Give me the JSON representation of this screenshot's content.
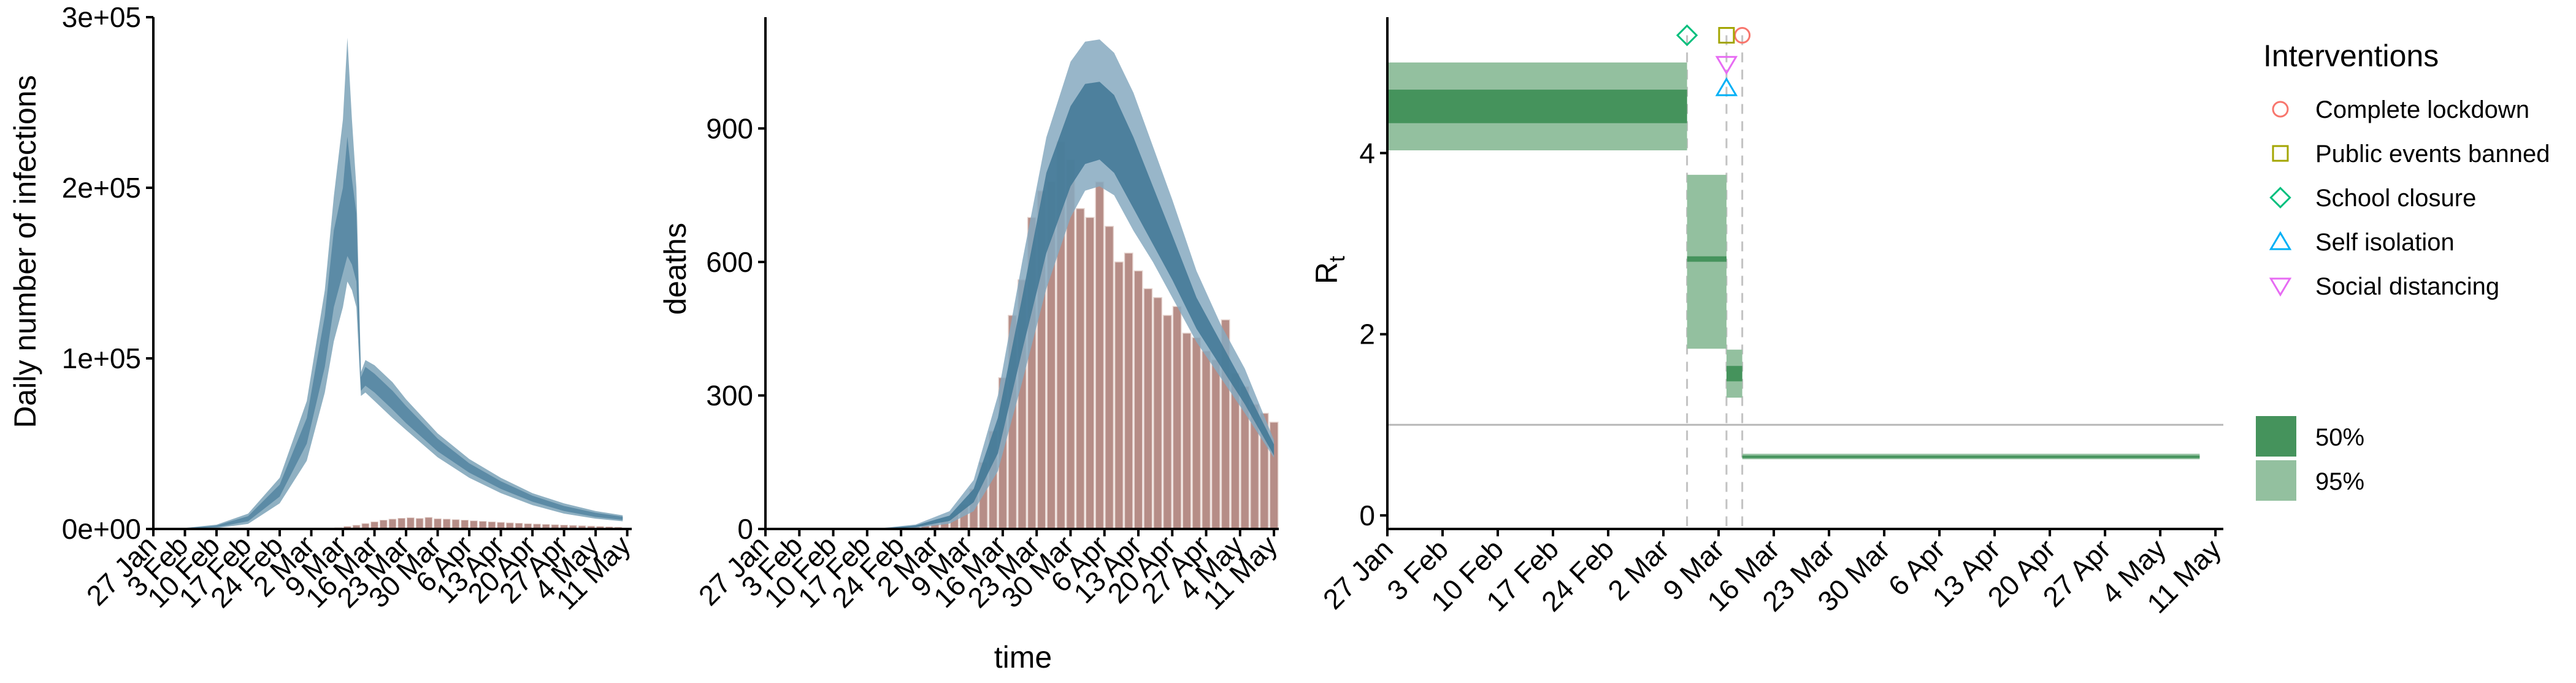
{
  "figure": {
    "colors": {
      "band95": "#8fb0c2",
      "band50": "#5c8ba6",
      "deaths_band95": "#86a9bf",
      "deaths_band50": "#3f7795",
      "bar_fill": "#b68d87",
      "bar_stroke": "#e6d4cf",
      "rt95": "#93c09f",
      "rt50": "#45935c",
      "ref_line": "#b8b8b8",
      "vline": "#c2c2c2",
      "axis": "#000000"
    }
  },
  "chart_data": [
    {
      "type": "area",
      "panel": "infections",
      "title": "",
      "xlabel": "",
      "ylabel": "Daily number of infections",
      "ylim": [
        0,
        300000
      ],
      "yticks": [
        0,
        100000,
        200000,
        300000
      ],
      "ytick_labels": [
        "0e+00",
        "1e+05",
        "2e+05",
        "3e+05"
      ],
      "xticks": [
        "27 Jan",
        "3 Feb",
        "10 Feb",
        "17 Feb",
        "24 Feb",
        "2 Mar",
        "9 Mar",
        "16 Mar",
        "23 Mar",
        "30 Mar",
        "6 Apr",
        "13 Apr",
        "20 Apr",
        "27 Apr",
        "4 May",
        "11 May"
      ],
      "grid": false,
      "series": [
        {
          "kind": "band95",
          "points": [
            [
              "2020-01-27",
              0,
              200
            ],
            [
              "2020-02-03",
              100,
              600
            ],
            [
              "2020-02-10",
              500,
              2500
            ],
            [
              "2020-02-17",
              3000,
              9000
            ],
            [
              "2020-02-24",
              15000,
              30000
            ],
            [
              "2020-03-01",
              40000,
              75000
            ],
            [
              "2020-03-05",
              80000,
              140000
            ],
            [
              "2020-03-07",
              110000,
              195000
            ],
            [
              "2020-03-09",
              130000,
              240000
            ],
            [
              "2020-03-10",
              145000,
              288000
            ],
            [
              "2020-03-11",
              140000,
              240000
            ],
            [
              "2020-03-12",
              130000,
              200000
            ],
            [
              "2020-03-13",
              78000,
              92000
            ],
            [
              "2020-03-14",
              80000,
              99000
            ],
            [
              "2020-03-16",
              75000,
              96000
            ],
            [
              "2020-03-20",
              65000,
              86000
            ],
            [
              "2020-03-23",
              58000,
              76000
            ],
            [
              "2020-03-30",
              42000,
              56000
            ],
            [
              "2020-04-06",
              30000,
              41000
            ],
            [
              "2020-04-13",
              21000,
              30000
            ],
            [
              "2020-04-20",
              14000,
              21000
            ],
            [
              "2020-04-27",
              9000,
              15000
            ],
            [
              "2020-05-04",
              6000,
              10500
            ],
            [
              "2020-05-10",
              4500,
              8000
            ]
          ]
        },
        {
          "kind": "band50",
          "points": [
            [
              "2020-01-27",
              0,
              150
            ],
            [
              "2020-02-03",
              200,
              450
            ],
            [
              "2020-02-10",
              1000,
              2000
            ],
            [
              "2020-02-17",
              4500,
              7500
            ],
            [
              "2020-02-24",
              19000,
              26000
            ],
            [
              "2020-03-01",
              50000,
              65000
            ],
            [
              "2020-03-05",
              95000,
              125000
            ],
            [
              "2020-03-07",
              130000,
              175000
            ],
            [
              "2020-03-09",
              150000,
              200000
            ],
            [
              "2020-03-10",
              160000,
              230000
            ],
            [
              "2020-03-11",
              155000,
              205000
            ],
            [
              "2020-03-12",
              145000,
              185000
            ],
            [
              "2020-03-13",
              81000,
              89000
            ],
            [
              "2020-03-14",
              84000,
              95000
            ],
            [
              "2020-03-16",
              80000,
              91000
            ],
            [
              "2020-03-20",
              70000,
              81000
            ],
            [
              "2020-03-23",
              62000,
              72000
            ],
            [
              "2020-03-30",
              45500,
              53000
            ],
            [
              "2020-04-06",
              33000,
              38500
            ],
            [
              "2020-04-13",
              23500,
              28000
            ],
            [
              "2020-04-20",
              16000,
              19500
            ],
            [
              "2020-04-27",
              10500,
              13500
            ],
            [
              "2020-05-04",
              7000,
              9500
            ],
            [
              "2020-05-10",
              5300,
              7200
            ]
          ]
        },
        {
          "kind": "bars",
          "name": "",
          "points": [
            [
              "2020-03-05",
              200
            ],
            [
              "2020-03-08",
              700
            ],
            [
              "2020-03-10",
              1500
            ],
            [
              "2020-03-12",
              2200
            ],
            [
              "2020-03-14",
              3200
            ],
            [
              "2020-03-16",
              4200
            ],
            [
              "2020-03-18",
              5200
            ],
            [
              "2020-03-20",
              5800
            ],
            [
              "2020-03-22",
              6300
            ],
            [
              "2020-03-24",
              6600
            ],
            [
              "2020-03-26",
              6200
            ],
            [
              "2020-03-28",
              6800
            ],
            [
              "2020-03-30",
              6000
            ],
            [
              "2020-04-01",
              5800
            ],
            [
              "2020-04-03",
              5500
            ],
            [
              "2020-04-05",
              5200
            ],
            [
              "2020-04-07",
              4800
            ],
            [
              "2020-04-09",
              4500
            ],
            [
              "2020-04-11",
              4200
            ],
            [
              "2020-04-13",
              3900
            ],
            [
              "2020-04-15",
              3600
            ],
            [
              "2020-04-17",
              3400
            ],
            [
              "2020-04-19",
              3100
            ],
            [
              "2020-04-21",
              2900
            ],
            [
              "2020-04-23",
              2700
            ],
            [
              "2020-04-25",
              2500
            ],
            [
              "2020-04-27",
              2300
            ],
            [
              "2020-04-29",
              2100
            ],
            [
              "2020-05-01",
              1900
            ],
            [
              "2020-05-03",
              1700
            ],
            [
              "2020-05-05",
              1500
            ],
            [
              "2020-05-07",
              1300
            ],
            [
              "2020-05-09",
              1100
            ]
          ]
        }
      ]
    },
    {
      "type": "area",
      "panel": "deaths",
      "title": "",
      "xlabel": "time",
      "ylabel": "deaths",
      "ylim": [
        0,
        1150
      ],
      "yticks": [
        0,
        300,
        600,
        900
      ],
      "ytick_labels": [
        "0",
        "300",
        "600",
        "900"
      ],
      "xticks": [
        "27 Jan",
        "3 Feb",
        "10 Feb",
        "17 Feb",
        "24 Feb",
        "2 Mar",
        "9 Mar",
        "16 Mar",
        "23 Mar",
        "30 Mar",
        "6 Apr",
        "13 Apr",
        "20 Apr",
        "27 Apr",
        "4 May",
        "11 May"
      ],
      "grid": false,
      "series": [
        {
          "kind": "band95",
          "points": [
            [
              "2020-02-20",
              0,
              2
            ],
            [
              "2020-02-27",
              2,
              10
            ],
            [
              "2020-03-05",
              12,
              40
            ],
            [
              "2020-03-10",
              40,
              110
            ],
            [
              "2020-03-15",
              130,
              300
            ],
            [
              "2020-03-20",
              330,
              600
            ],
            [
              "2020-03-25",
              540,
              880
            ],
            [
              "2020-03-30",
              700,
              1050
            ],
            [
              "2020-04-02",
              760,
              1095
            ],
            [
              "2020-04-05",
              770,
              1100
            ],
            [
              "2020-04-08",
              750,
              1070
            ],
            [
              "2020-04-12",
              670,
              980
            ],
            [
              "2020-04-16",
              600,
              860
            ],
            [
              "2020-04-20",
              520,
              740
            ],
            [
              "2020-04-25",
              420,
              580
            ],
            [
              "2020-04-30",
              340,
              460
            ],
            [
              "2020-05-05",
              260,
              360
            ],
            [
              "2020-05-11",
              160,
              200
            ]
          ]
        },
        {
          "kind": "band50",
          "points": [
            [
              "2020-02-20",
              0,
              1
            ],
            [
              "2020-02-27",
              4,
              8
            ],
            [
              "2020-03-05",
              18,
              30
            ],
            [
              "2020-03-10",
              60,
              90
            ],
            [
              "2020-03-15",
              170,
              250
            ],
            [
              "2020-03-20",
              400,
              520
            ],
            [
              "2020-03-25",
              620,
              800
            ],
            [
              "2020-03-30",
              770,
              950
            ],
            [
              "2020-04-02",
              820,
              1000
            ],
            [
              "2020-04-05",
              830,
              1005
            ],
            [
              "2020-04-08",
              800,
              975
            ],
            [
              "2020-04-12",
              720,
              880
            ],
            [
              "2020-04-16",
              640,
              770
            ],
            [
              "2020-04-20",
              560,
              660
            ],
            [
              "2020-04-25",
              450,
              520
            ],
            [
              "2020-04-30",
              365,
              420
            ],
            [
              "2020-05-05",
              280,
              320
            ],
            [
              "2020-05-11",
              165,
              190
            ]
          ]
        },
        {
          "kind": "bars",
          "name": "",
          "points": [
            [
              "2020-02-23",
              2
            ],
            [
              "2020-02-25",
              4
            ],
            [
              "2020-02-27",
              6
            ],
            [
              "2020-02-29",
              8
            ],
            [
              "2020-03-02",
              12
            ],
            [
              "2020-03-04",
              20
            ],
            [
              "2020-03-06",
              35
            ],
            [
              "2020-03-08",
              55
            ],
            [
              "2020-03-10",
              90
            ],
            [
              "2020-03-12",
              150
            ],
            [
              "2020-03-14",
              220
            ],
            [
              "2020-03-16",
              340
            ],
            [
              "2020-03-18",
              480
            ],
            [
              "2020-03-20",
              560
            ],
            [
              "2020-03-22",
              700
            ],
            [
              "2020-03-24",
              760
            ],
            [
              "2020-03-26",
              780
            ],
            [
              "2020-03-28",
              870
            ],
            [
              "2020-03-30",
              830
            ],
            [
              "2020-04-01",
              720
            ],
            [
              "2020-04-03",
              700
            ],
            [
              "2020-04-05",
              780
            ],
            [
              "2020-04-07",
              680
            ],
            [
              "2020-04-09",
              600
            ],
            [
              "2020-04-11",
              620
            ],
            [
              "2020-04-13",
              580
            ],
            [
              "2020-04-15",
              540
            ],
            [
              "2020-04-17",
              520
            ],
            [
              "2020-04-19",
              480
            ],
            [
              "2020-04-21",
              500
            ],
            [
              "2020-04-23",
              440
            ],
            [
              "2020-04-25",
              430
            ],
            [
              "2020-04-27",
              400
            ],
            [
              "2020-04-29",
              380
            ],
            [
              "2020-05-01",
              470
            ],
            [
              "2020-05-03",
              350
            ],
            [
              "2020-05-05",
              320
            ],
            [
              "2020-05-07",
              280
            ],
            [
              "2020-05-09",
              260
            ],
            [
              "2020-05-11",
              240
            ]
          ]
        }
      ]
    },
    {
      "type": "bar",
      "panel": "rt",
      "title": "",
      "xlabel": "",
      "ylabel": "Rt",
      "ylabel_main": "R",
      "ylabel_sub": "t",
      "ylim": [
        -0.15,
        5.5
      ],
      "yticks": [
        0,
        2,
        4
      ],
      "ytick_labels": [
        "0",
        "2",
        "4"
      ],
      "xticks": [
        "27 Jan",
        "3 Feb",
        "10 Feb",
        "17 Feb",
        "24 Feb",
        "2 Mar",
        "9 Mar",
        "16 Mar",
        "23 Mar",
        "30 Mar",
        "6 Apr",
        "13 Apr",
        "20 Apr",
        "27 Apr",
        "4 May",
        "11 May"
      ],
      "reference_line": 1,
      "grid": false,
      "segments": [
        {
          "start": "2020-01-27",
          "end": "2020-03-05",
          "lo95": 4.03,
          "hi95": 5.0,
          "lo50": 4.33,
          "hi50": 4.7
        },
        {
          "start": "2020-03-05",
          "end": "2020-03-10",
          "lo95": 1.84,
          "hi95": 3.76,
          "lo50": 2.8,
          "hi50": 2.86
        },
        {
          "start": "2020-03-10",
          "end": "2020-03-12",
          "lo95": 1.3,
          "hi95": 1.83,
          "lo50": 1.48,
          "hi50": 1.65
        },
        {
          "start": "2020-03-12",
          "end": "2020-05-09",
          "lo95": 0.62,
          "hi95": 0.68,
          "lo50": 0.64,
          "hi50": 0.66
        }
      ],
      "legend_position": "right",
      "interventions_title": "Interventions",
      "interventions": [
        {
          "label": "Complete lockdown",
          "date": "2020-03-12",
          "y": 5.3,
          "marker": "circle",
          "color": "#f8766d"
        },
        {
          "label": "Public events banned",
          "date": "2020-03-10",
          "y": 5.3,
          "marker": "square",
          "color": "#a3a500"
        },
        {
          "label": "School closure",
          "date": "2020-03-05",
          "y": 5.3,
          "marker": "diamond",
          "color": "#00bf7d"
        },
        {
          "label": "Self isolation",
          "date": "2020-03-10",
          "y": 4.72,
          "marker": "triangle-up",
          "color": "#00b0f6"
        },
        {
          "label": "Social distancing",
          "date": "2020-03-10",
          "y": 4.98,
          "marker": "triangle-down",
          "color": "#e76bf3"
        }
      ],
      "interval_legend": [
        {
          "label": "50%",
          "key": "rt50"
        },
        {
          "label": "95%",
          "key": "rt95"
        }
      ]
    }
  ]
}
